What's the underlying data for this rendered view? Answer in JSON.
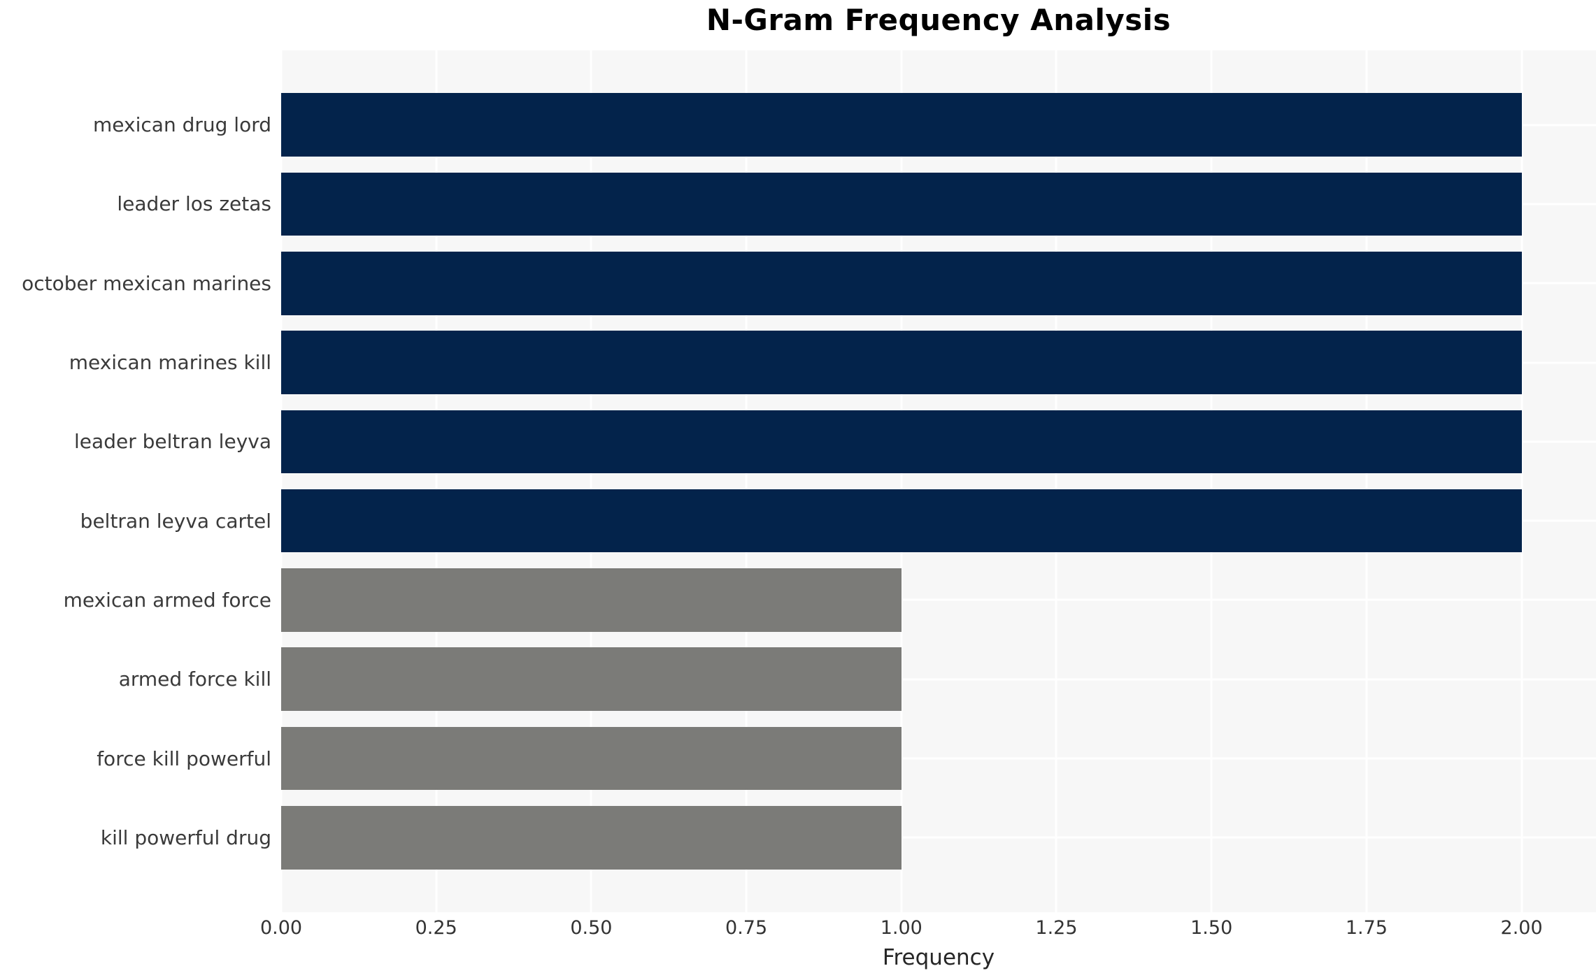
{
  "chart_data": {
    "type": "bar",
    "orientation": "horizontal",
    "title": "N-Gram Frequency Analysis",
    "xlabel": "Frequency",
    "ylabel": "",
    "categories": [
      "mexican drug lord",
      "leader los zetas",
      "october mexican marines",
      "mexican marines kill",
      "leader beltran leyva",
      "beltran leyva cartel",
      "mexican armed force",
      "armed force kill",
      "force kill powerful",
      "kill powerful drug"
    ],
    "values": [
      2,
      2,
      2,
      2,
      2,
      2,
      1,
      1,
      1,
      1
    ],
    "bar_colors": [
      "#03234b",
      "#03234b",
      "#03234b",
      "#03234b",
      "#03234b",
      "#03234b",
      "#7b7b78",
      "#7b7b78",
      "#7b7b78",
      "#7b7b78"
    ],
    "xlim": [
      0,
      2.12
    ],
    "xticks": [
      0,
      0.25,
      0.5,
      0.75,
      1.0,
      1.25,
      1.5,
      1.75,
      2.0
    ],
    "xtick_labels": [
      "0.00",
      "0.25",
      "0.50",
      "0.75",
      "1.00",
      "1.25",
      "1.50",
      "1.75",
      "2.00"
    ],
    "grid": "white gridlines, vertical at x ticks and horizontal at category centers",
    "legend": "none",
    "colors": {
      "high_frequency_bar": "#03234b",
      "low_frequency_bar": "#7b7b78",
      "plot_background": "#f7f7f7",
      "figure_background": "#ffffff",
      "gridline": "#ffffff",
      "tick_text": "#333333",
      "title_text": "#000000"
    }
  }
}
